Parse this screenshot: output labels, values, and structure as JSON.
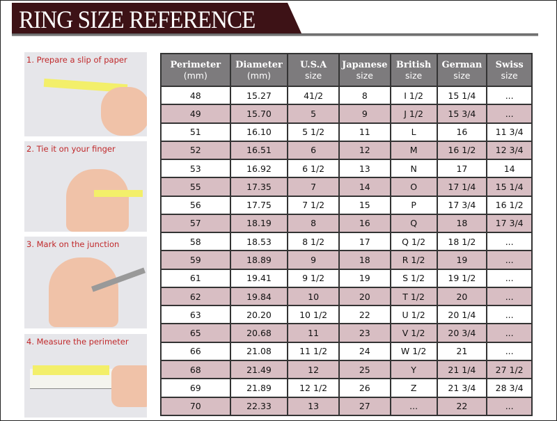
{
  "title": "RING SIZE REFERENCE",
  "colors": {
    "banner": "#3d1216",
    "header": "#7d7b7d",
    "row_alt": "#d8bec3",
    "step_label": "#c0282a"
  },
  "steps": [
    "1. Prepare a slip of paper",
    "2. Tie it on your finger",
    "3. Mark on the junction",
    "4. Measure the perimeter"
  ],
  "table": {
    "headers": [
      {
        "title": "Perimeter",
        "sub": "(mm)"
      },
      {
        "title": "Diameter",
        "sub": "(mm)"
      },
      {
        "title": "U.S.A",
        "sub": "size"
      },
      {
        "title": "Japanese",
        "sub": "size"
      },
      {
        "title": "British",
        "sub": "size"
      },
      {
        "title": "German",
        "sub": "size"
      },
      {
        "title": "Swiss",
        "sub": "size"
      }
    ],
    "rows": [
      [
        "48",
        "15.27",
        "41/2",
        "8",
        "I 1/2",
        "15 1/4",
        "..."
      ],
      [
        "49",
        "15.70",
        "5",
        "9",
        "J 1/2",
        "15 3/4",
        "..."
      ],
      [
        "51",
        "16.10",
        "5 1/2",
        "11",
        "L",
        "16",
        "11 3/4"
      ],
      [
        "52",
        "16.51",
        "6",
        "12",
        "M",
        "16 1/2",
        "12 3/4"
      ],
      [
        "53",
        "16.92",
        "6 1/2",
        "13",
        "N",
        "17",
        "14"
      ],
      [
        "55",
        "17.35",
        "7",
        "14",
        "O",
        "17 1/4",
        "15 1/4"
      ],
      [
        "56",
        "17.75",
        "7 1/2",
        "15",
        "P",
        "17 3/4",
        "16 1/2"
      ],
      [
        "57",
        "18.19",
        "8",
        "16",
        "Q",
        "18",
        "17 3/4"
      ],
      [
        "58",
        "18.53",
        "8 1/2",
        "17",
        "Q  1/2",
        "18 1/2",
        "..."
      ],
      [
        "59",
        "18.89",
        "9",
        "18",
        "R 1/2",
        "19",
        "..."
      ],
      [
        "61",
        "19.41",
        "9 1/2",
        "19",
        "S 1/2",
        "19 1/2",
        "..."
      ],
      [
        "62",
        "19.84",
        "10",
        "20",
        "T 1/2",
        "20",
        "..."
      ],
      [
        "63",
        "20.20",
        "10 1/2",
        "22",
        "U 1/2",
        "20 1/4",
        "..."
      ],
      [
        "65",
        "20.68",
        "11",
        "23",
        "V 1/2",
        "20 3/4",
        "..."
      ],
      [
        "66",
        "21.08",
        "11 1/2",
        "24",
        "W 1/2",
        "21",
        "..."
      ],
      [
        "68",
        "21.49",
        "12",
        "25",
        "Y",
        "21 1/4",
        "27 1/2"
      ],
      [
        "69",
        "21.89",
        "12 1/2",
        "26",
        "Z",
        "21 3/4",
        "28 3/4"
      ],
      [
        "70",
        "22.33",
        "13",
        "27",
        "...",
        "22",
        "..."
      ]
    ]
  }
}
